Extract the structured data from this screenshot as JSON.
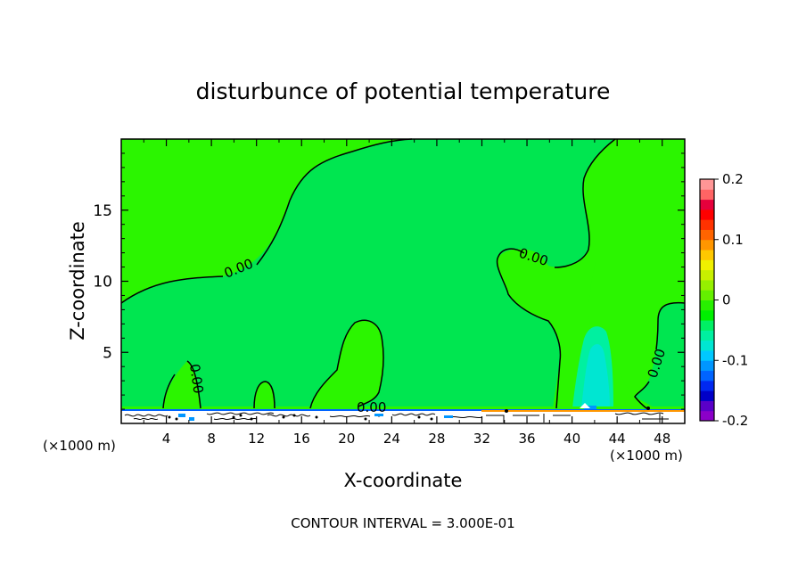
{
  "chart_data": {
    "type": "heatmap",
    "title": "disturbunce of potential temperature",
    "xlabel": "X-coordinate",
    "ylabel": "Z-coordinate",
    "x_unit": "(×1000 m)",
    "x_unit_right": "(×1000 m)",
    "xlim": [
      0,
      50
    ],
    "ylim": [
      0,
      20
    ],
    "x_ticks": [
      4,
      8,
      12,
      16,
      20,
      24,
      28,
      32,
      36,
      40,
      44,
      48
    ],
    "y_ticks": [
      5,
      10,
      15
    ],
    "contour_labels": [
      "0.00",
      "0.00",
      "0.00",
      "0.00",
      "0.00"
    ],
    "contour_interval_text": "CONTOUR INTERVAL = 3.000E-01",
    "colorbar": {
      "ticks": [
        "0.2",
        "0.1",
        "0",
        "-0.1",
        "-0.2"
      ],
      "tick_values": [
        0.2,
        0.1,
        0,
        -0.1,
        -0.2
      ],
      "range": [
        -0.2,
        0.2
      ],
      "colors": [
        "#8b00c8",
        "#5a00c8",
        "#0000c8",
        "#0028f0",
        "#0064ff",
        "#0096ff",
        "#00c8ff",
        "#00e6d2",
        "#00f0a0",
        "#00f064",
        "#00f000",
        "#28f000",
        "#64f000",
        "#96f000",
        "#c8f000",
        "#f0f000",
        "#ffc800",
        "#ff9600",
        "#ff6400",
        "#ff3200",
        "#ff0000",
        "#e6003c",
        "#ff6464",
        "#ff9696"
      ],
      "regions": {
        "background": "#2bf500",
        "near_zero_negative": "#00e650",
        "negative_core": "#00f0c8"
      }
    }
  }
}
